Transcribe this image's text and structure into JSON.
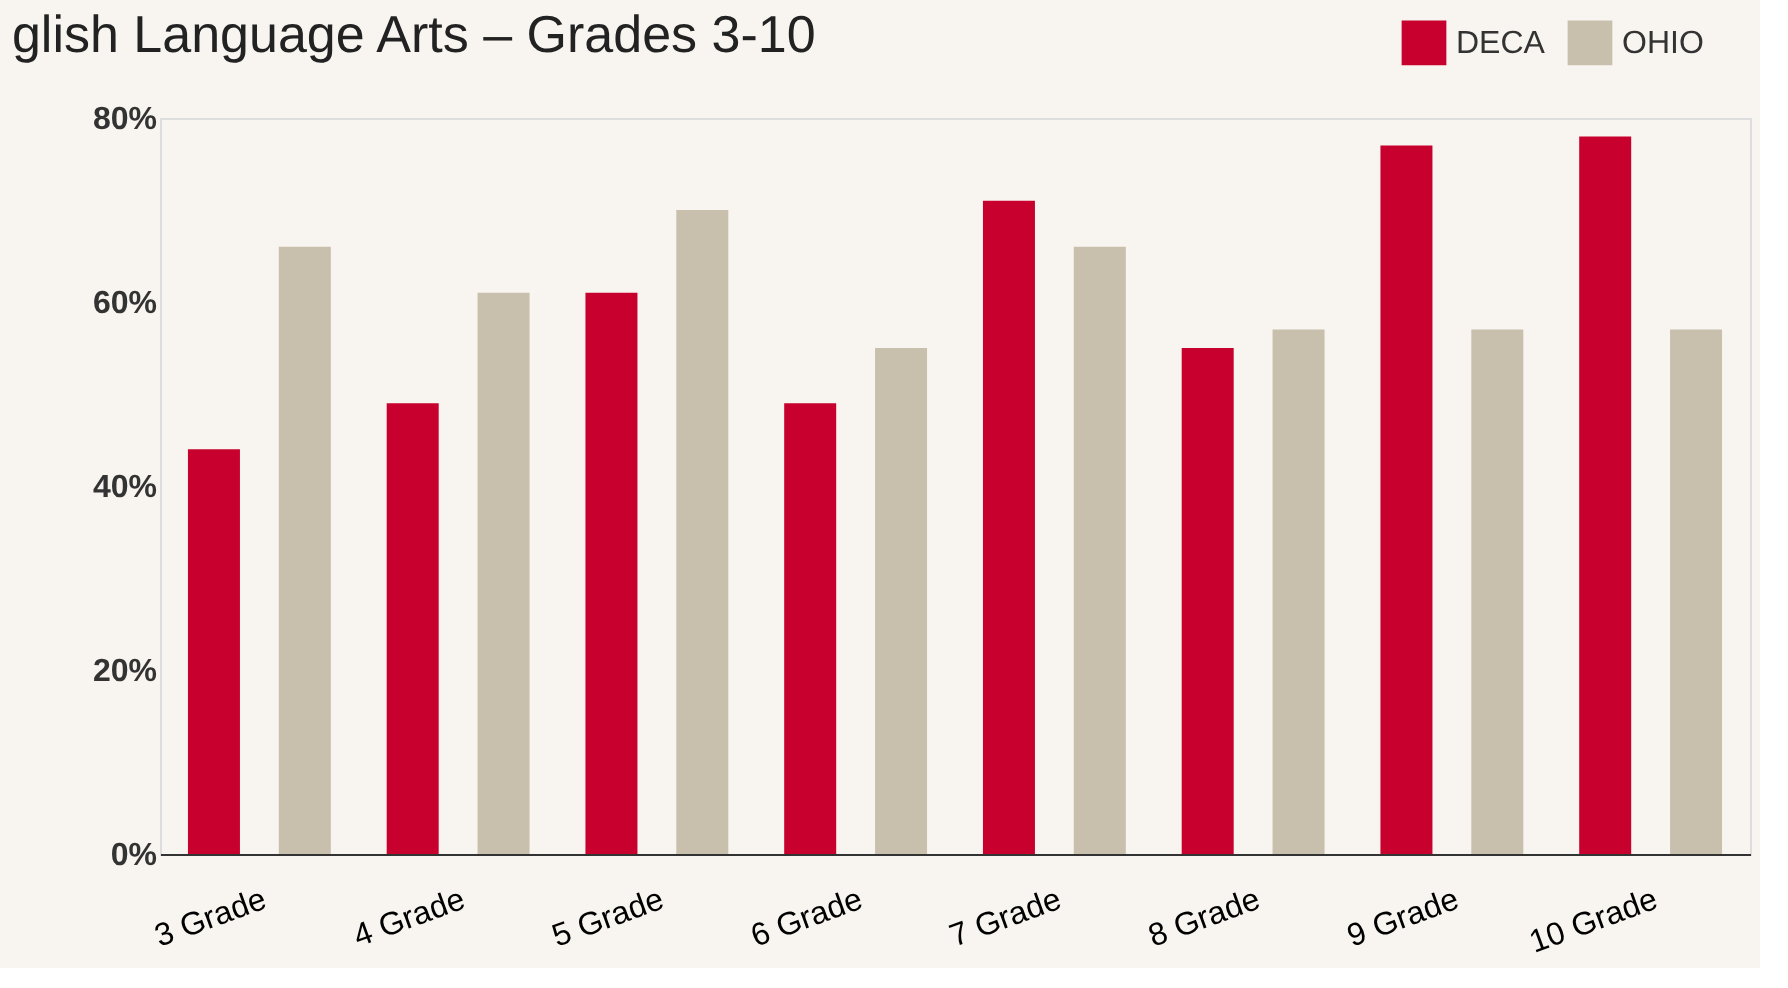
{
  "chart_data": {
    "type": "bar",
    "title": "glish Language Arts – Grades 3-10",
    "categories": [
      "3 Grade",
      "4 Grade",
      "5 Grade",
      "6 Grade",
      "7 Grade",
      "8 Grade",
      "9 Grade",
      "10 Grade"
    ],
    "series": [
      {
        "name": "DECA",
        "color": "#c8002d",
        "values": [
          44,
          49,
          61,
          49,
          71,
          55,
          77,
          78
        ]
      },
      {
        "name": "OHIO",
        "color": "#c9bfad",
        "values": [
          66,
          61,
          70,
          55,
          66,
          57,
          57,
          57
        ]
      }
    ],
    "ylim": [
      0,
      80
    ],
    "yticks": [
      {
        "value": 0,
        "label": "0%"
      },
      {
        "value": 20,
        "label": "20%"
      },
      {
        "value": 40,
        "label": "40%"
      },
      {
        "value": 60,
        "label": "60%"
      },
      {
        "value": 80,
        "label": "80%"
      }
    ],
    "grid": false,
    "legend": "top right"
  }
}
